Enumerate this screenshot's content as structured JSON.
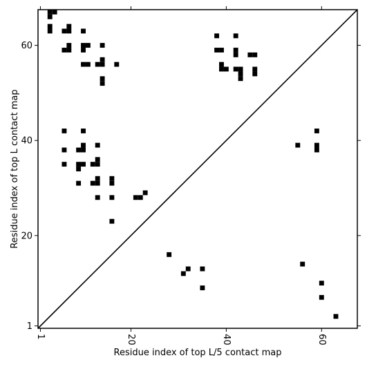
{
  "chart_data": {
    "type": "heatmap",
    "title": "",
    "xlabel": "Residue index of top L/5 contact map",
    "ylabel": "Residue index of top L contact map",
    "xlim": [
      0.5,
      67.5
    ],
    "ylim": [
      0.5,
      67.5
    ],
    "xticks": [
      {
        "value": 1,
        "label": "1"
      },
      {
        "value": 20,
        "label": "20"
      },
      {
        "value": 40,
        "label": "40"
      },
      {
        "value": 60,
        "label": "60"
      }
    ],
    "yticks": [
      {
        "value": 1,
        "label": "1"
      },
      {
        "value": 20,
        "label": "20"
      },
      {
        "value": 40,
        "label": "40"
      },
      {
        "value": 60,
        "label": "60"
      }
    ],
    "diagonal": true,
    "mark_color": "#000000",
    "background_color": "#ffffff",
    "upper_left_contacts": [
      [
        3,
        67
      ],
      [
        3,
        66
      ],
      [
        3,
        64
      ],
      [
        3,
        63
      ],
      [
        4,
        67
      ],
      [
        6,
        63
      ],
      [
        6,
        59
      ],
      [
        7,
        64
      ],
      [
        7,
        63
      ],
      [
        7,
        60
      ],
      [
        7,
        59
      ],
      [
        10,
        63
      ],
      [
        10,
        60
      ],
      [
        10,
        59
      ],
      [
        11,
        60
      ],
      [
        10,
        56
      ],
      [
        11,
        56
      ],
      [
        13,
        56
      ],
      [
        14,
        57
      ],
      [
        14,
        56
      ],
      [
        14,
        60
      ],
      [
        14,
        53
      ],
      [
        14,
        52
      ],
      [
        17,
        56
      ],
      [
        6,
        42
      ],
      [
        6,
        38
      ],
      [
        6,
        35
      ],
      [
        9,
        38
      ],
      [
        9,
        35
      ],
      [
        9,
        34
      ],
      [
        9,
        31
      ],
      [
        10,
        42
      ],
      [
        10,
        39
      ],
      [
        10,
        38
      ],
      [
        10,
        35
      ],
      [
        12,
        35
      ],
      [
        12,
        31
      ],
      [
        13,
        39
      ],
      [
        13,
        36
      ],
      [
        13,
        35
      ],
      [
        13,
        32
      ],
      [
        13,
        31
      ],
      [
        13,
        28
      ],
      [
        16,
        32
      ],
      [
        16,
        31
      ],
      [
        16,
        28
      ],
      [
        16,
        23
      ],
      [
        21,
        28
      ],
      [
        22,
        28
      ],
      [
        23,
        29
      ],
      [
        38,
        62
      ],
      [
        38,
        59
      ],
      [
        39,
        59
      ],
      [
        39,
        56
      ],
      [
        39,
        55
      ],
      [
        40,
        55
      ],
      [
        42,
        62
      ],
      [
        42,
        59
      ],
      [
        42,
        58
      ],
      [
        42,
        55
      ],
      [
        43,
        55
      ],
      [
        43,
        54
      ],
      [
        43,
        53
      ],
      [
        45,
        58
      ],
      [
        46,
        58
      ],
      [
        46,
        55
      ],
      [
        46,
        54
      ]
    ],
    "lower_right_contacts": [
      [
        28,
        16
      ],
      [
        31,
        12
      ],
      [
        32,
        13
      ],
      [
        35,
        13
      ],
      [
        35,
        9
      ],
      [
        55,
        39
      ],
      [
        56,
        14
      ],
      [
        59,
        42
      ],
      [
        59,
        39
      ],
      [
        59,
        38
      ],
      [
        60,
        10
      ],
      [
        60,
        7
      ],
      [
        63,
        3
      ]
    ]
  }
}
